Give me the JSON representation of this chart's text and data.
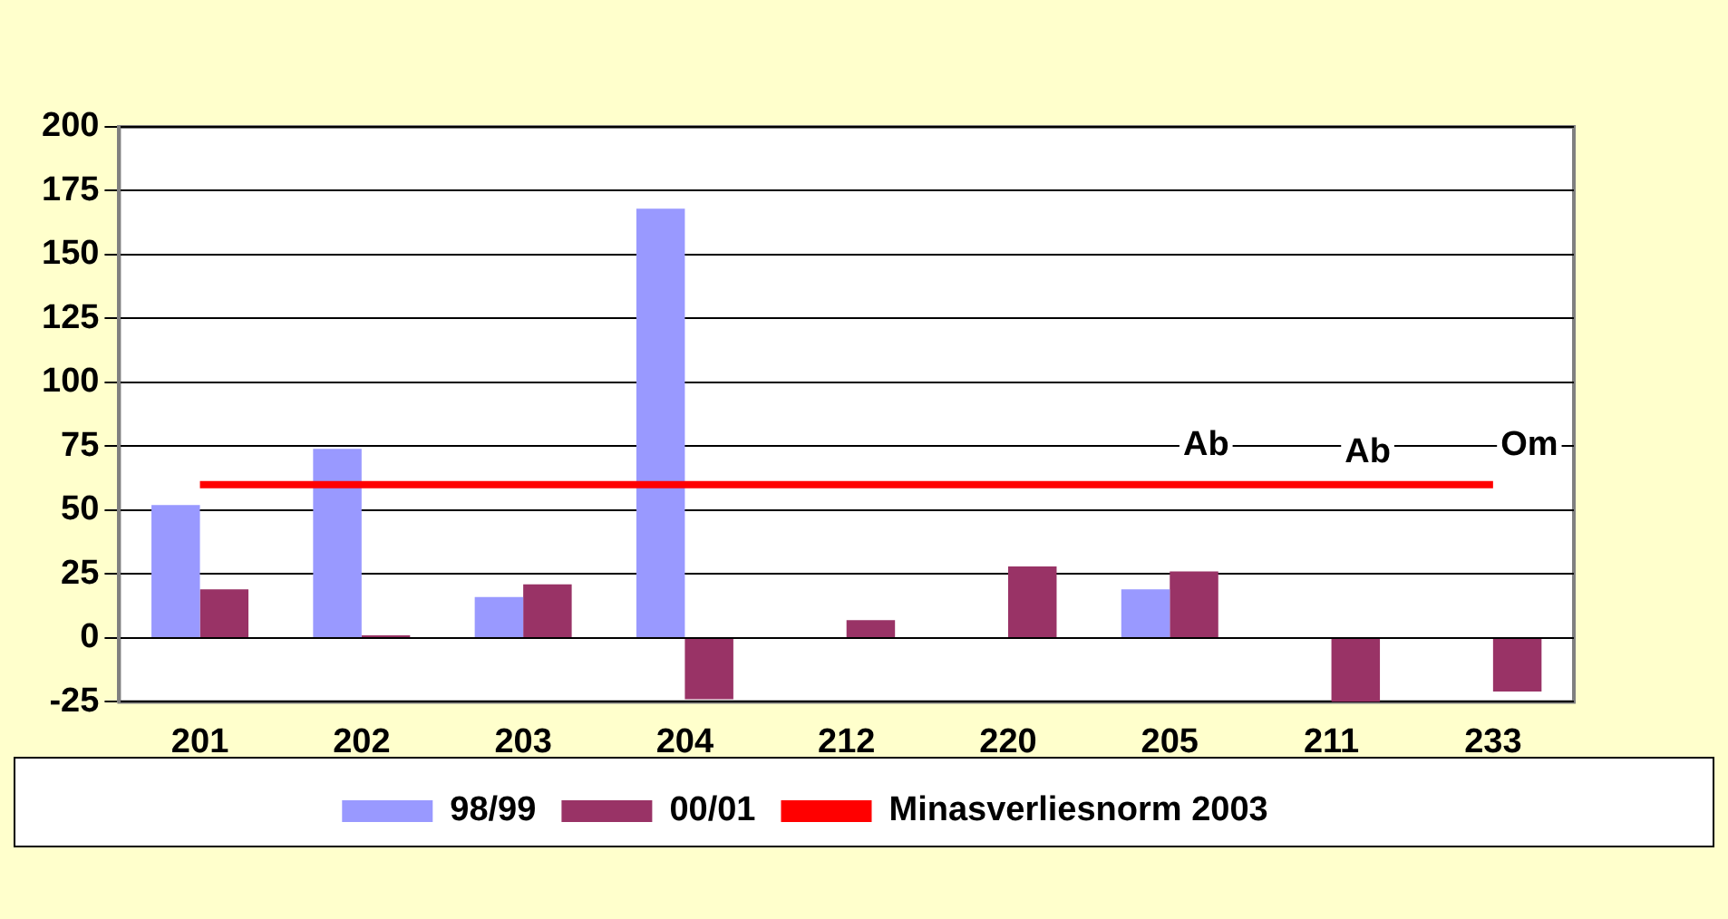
{
  "chart_data": {
    "type": "bar",
    "categories": [
      "201",
      "202",
      "203",
      "204",
      "212",
      "220",
      "205",
      "211",
      "233"
    ],
    "series": [
      {
        "name": "98/99",
        "color": "#9999ff",
        "values": [
          52,
          74,
          16,
          168,
          null,
          null,
          19,
          null,
          null
        ]
      },
      {
        "name": "00/01",
        "color": "#993366",
        "values": [
          19,
          1,
          21,
          -24,
          7,
          28,
          26,
          -25,
          -21
        ]
      },
      {
        "name": "Minasverliesnorm 2003",
        "type": "line",
        "color": "#ff0000",
        "values": [
          60,
          60,
          60,
          60,
          60,
          60,
          60,
          60,
          60
        ]
      }
    ],
    "ylim": [
      -25,
      200
    ],
    "yticks": [
      -25,
      0,
      25,
      50,
      75,
      100,
      125,
      150,
      175,
      200
    ],
    "grid": "y",
    "legend": "bottom",
    "marker": "none",
    "annotations": [
      "Ab",
      "Ab",
      "Om"
    ]
  }
}
